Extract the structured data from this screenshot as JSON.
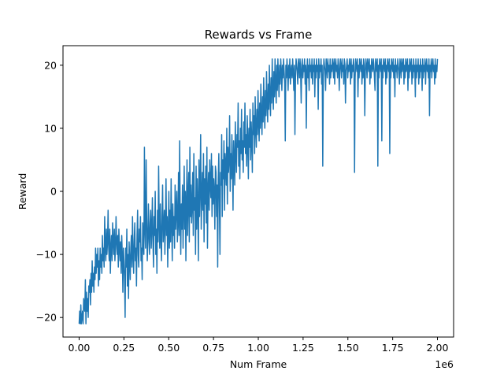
{
  "chart_data": {
    "type": "line",
    "title": "Rewards vs Frame",
    "xlabel": "Num Frame",
    "ylabel": "Reward",
    "x_offset_label": "1e6",
    "xlim": [
      -90000,
      2090000
    ],
    "ylim": [
      -23.1,
      23.1
    ],
    "x_ticks": [
      0,
      250000,
      500000,
      750000,
      1000000,
      1250000,
      1500000,
      1750000,
      2000000
    ],
    "x_tick_labels": [
      "0.00",
      "0.25",
      "0.50",
      "0.75",
      "1.00",
      "1.25",
      "1.50",
      "1.75",
      "2.00"
    ],
    "y_ticks": [
      -20,
      -10,
      0,
      10,
      20
    ],
    "y_tick_labels": [
      "−20",
      "−10",
      "0",
      "10",
      "20"
    ],
    "grid": false,
    "series": [
      {
        "color": "#1f77b4",
        "x_start": 0,
        "x_end": 2000000,
        "values": [
          -21,
          -19,
          -21,
          -18,
          -21,
          -20,
          -19,
          -21,
          -17,
          -18,
          -19,
          -14,
          -21,
          -16,
          -19,
          -17,
          -20,
          -15,
          -16,
          -14,
          -18,
          -13,
          -16,
          -11,
          -15,
          -13,
          -16,
          -12,
          -14,
          -9,
          -13,
          -10,
          -12,
          -9,
          -15,
          -11,
          -14,
          -9,
          -12,
          -10,
          -13,
          -7,
          -11,
          -9,
          -12,
          -4,
          -9,
          -11,
          -6,
          -10,
          -8,
          -3,
          -9,
          -11,
          -6,
          -13,
          -9,
          -7,
          -11,
          -5,
          -8,
          -10,
          -6,
          -11,
          -9,
          -4,
          -8,
          -10,
          -7,
          -12,
          -6,
          -9,
          -11,
          -8,
          -13,
          -7,
          -10,
          -16,
          -9,
          -11,
          -14,
          -20,
          -9,
          -12,
          -6,
          -15,
          -10,
          -17,
          -8,
          -11,
          -14,
          -9,
          -7,
          -12,
          -4,
          -10,
          -13,
          -8,
          -5,
          -11,
          -9,
          -15,
          -7,
          -3,
          -10,
          -12,
          -6,
          -8,
          -4,
          -11,
          -9,
          -14,
          -5,
          -8,
          -10,
          7,
          -6,
          -9,
          5,
          -4,
          -11,
          -8,
          -2,
          -7,
          -10,
          -5,
          -3,
          -9,
          -6,
          -1,
          -8,
          -12,
          -4,
          -7,
          0,
          -10,
          -6,
          -13,
          -3,
          -8,
          4,
          -5,
          -9,
          -2,
          -7,
          -11,
          -4,
          1,
          -8,
          -6,
          -3,
          -10,
          -5,
          2,
          -7,
          -4,
          -12,
          -6,
          0,
          -9,
          -3,
          -8,
          2,
          -5,
          -11,
          -2,
          -7,
          -4,
          -9,
          1,
          -6,
          -3,
          0,
          -8,
          -5,
          3,
          -7,
          8,
          -4,
          -10,
          -2,
          -6,
          1,
          -9,
          -3,
          4,
          -6,
          0,
          -11,
          -2,
          5,
          -7,
          -1,
          3,
          -8,
          7,
          -4,
          1,
          -5,
          -2,
          3,
          -7,
          6,
          -3,
          -1,
          -10,
          4,
          -6,
          2,
          -2,
          -11,
          5,
          -4,
          1,
          9,
          -6,
          -1,
          3,
          -3,
          6,
          -8,
          2,
          -2,
          4,
          -5,
          7,
          -9,
          0,
          3,
          -3,
          5,
          1,
          -1,
          6,
          -4,
          4,
          -2,
          2,
          0,
          -6,
          4,
          3,
          -4,
          1,
          -12,
          2,
          6,
          -2,
          -10,
          3,
          1,
          9,
          -4,
          5,
          2,
          8,
          -3,
          6,
          4,
          1,
          10,
          -2,
          7,
          3,
          5,
          12,
          0,
          6,
          2,
          9,
          4,
          -3,
          8,
          5,
          1,
          11,
          6,
          3,
          9,
          7,
          14,
          4,
          8,
          2,
          10,
          6,
          13,
          5,
          8,
          3,
          11,
          7,
          14,
          6,
          9,
          4,
          12,
          8,
          2,
          10,
          7,
          13,
          5,
          11,
          8,
          3,
          14,
          9,
          12,
          6,
          15,
          10,
          7,
          13,
          9,
          16,
          11,
          8,
          14,
          10,
          17,
          12,
          9,
          15,
          11,
          18,
          13,
          10,
          16,
          12,
          19,
          14,
          11,
          17,
          13,
          20,
          15,
          12,
          18,
          14,
          21,
          16,
          13,
          19,
          15,
          21,
          17,
          14,
          20,
          16,
          21,
          18,
          15,
          20,
          17,
          21,
          19,
          16,
          20,
          18,
          21,
          19,
          17,
          8,
          20,
          18,
          21,
          19,
          16,
          20,
          18,
          21,
          17,
          19,
          20,
          18,
          21,
          19,
          16,
          20,
          9,
          18,
          21,
          20,
          19,
          17,
          21,
          20,
          18,
          21,
          19,
          14,
          20,
          21,
          18,
          20,
          19,
          21,
          17,
          20,
          10,
          19,
          21,
          18,
          20,
          16,
          21,
          19,
          20,
          18,
          21,
          17,
          20,
          19,
          21,
          15,
          20,
          18,
          21,
          19,
          20,
          13,
          21,
          18,
          20,
          19,
          21,
          17,
          20,
          4,
          18,
          21,
          20,
          19,
          16,
          21,
          20,
          18,
          21,
          19,
          20,
          17,
          21,
          18,
          20,
          19,
          21,
          20,
          18,
          21,
          17,
          20,
          21,
          19,
          20,
          18,
          21,
          20,
          16,
          19,
          21,
          20,
          18,
          21,
          19,
          20,
          17,
          21,
          20,
          14,
          19,
          20,
          21,
          18,
          20,
          19,
          21,
          20,
          17,
          21,
          18,
          20,
          19,
          21,
          20,
          3,
          18,
          21,
          20,
          19,
          21,
          15,
          20,
          18,
          21,
          20,
          19,
          21,
          17,
          20,
          18,
          21,
          20,
          12,
          19,
          21,
          20,
          18,
          21,
          20,
          19,
          21,
          17,
          20,
          18,
          21,
          20,
          19,
          21,
          20,
          18,
          16,
          21,
          20,
          19,
          21,
          4,
          20,
          18,
          21,
          20,
          19,
          21,
          8,
          20,
          18,
          21,
          20,
          19,
          21,
          17,
          20,
          18,
          21,
          20,
          19,
          21,
          6,
          20,
          18,
          21,
          20,
          19,
          21,
          18,
          20,
          15,
          21,
          19,
          20,
          18,
          21,
          20,
          19,
          17,
          21,
          20,
          18,
          21,
          19,
          20,
          21,
          17,
          20,
          18,
          21,
          19,
          20,
          21,
          16,
          20,
          18,
          21,
          19,
          20,
          21,
          17,
          20,
          18,
          21,
          19,
          20,
          15,
          21,
          18,
          20,
          19,
          21,
          17,
          20,
          18,
          21,
          19,
          20,
          16,
          21,
          18,
          20,
          19,
          21,
          17,
          20,
          21,
          19,
          20,
          18,
          21,
          12,
          20,
          19,
          21,
          18,
          20,
          21,
          19,
          20,
          17,
          21,
          18,
          20,
          19,
          21
        ]
      }
    ]
  }
}
